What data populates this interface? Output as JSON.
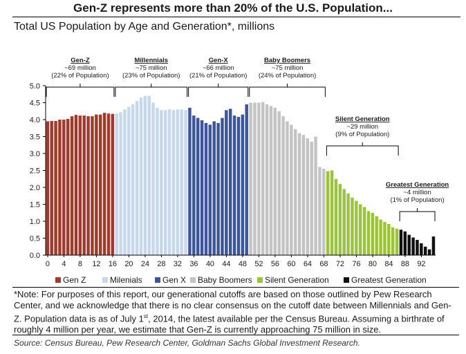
{
  "chart_data": {
    "type": "bar",
    "title": "Gen-Z represents more than 20% of the U.S. Population...",
    "subtitle": "Total US Population by Age and Generation*, millions",
    "xlabel": "",
    "ylabel": "",
    "ylim": [
      0,
      5.0
    ],
    "yticks": [
      "0.0",
      "0.5",
      "1.0",
      "1.5",
      "2.0",
      "2.5",
      "3.0",
      "3.5",
      "4.0",
      "4.5",
      "5.0"
    ],
    "xticks": [
      "0",
      "4",
      "8",
      "12",
      "16",
      "20",
      "24",
      "28",
      "32",
      "36",
      "40",
      "44",
      "48",
      "52",
      "56",
      "60",
      "64",
      "68",
      "72",
      "76",
      "80",
      "84",
      "88",
      "92"
    ],
    "ages": [
      0,
      1,
      2,
      3,
      4,
      5,
      6,
      7,
      8,
      9,
      10,
      11,
      12,
      13,
      14,
      15,
      16,
      17,
      18,
      19,
      20,
      21,
      22,
      23,
      24,
      25,
      26,
      27,
      28,
      29,
      30,
      31,
      32,
      33,
      34,
      35,
      36,
      37,
      38,
      39,
      40,
      41,
      42,
      43,
      44,
      45,
      46,
      47,
      48,
      49,
      50,
      51,
      52,
      53,
      54,
      55,
      56,
      57,
      58,
      59,
      60,
      61,
      62,
      63,
      64,
      65,
      66,
      67,
      68,
      69,
      70,
      71,
      72,
      73,
      74,
      75,
      76,
      77,
      78,
      79,
      80,
      81,
      82,
      83,
      84,
      85,
      86,
      87,
      88,
      89,
      90,
      91,
      92,
      93,
      94,
      95
    ],
    "values": [
      3.95,
      3.96,
      3.96,
      4.0,
      4.0,
      4.02,
      4.1,
      4.14,
      4.12,
      4.12,
      4.1,
      4.1,
      4.15,
      4.15,
      4.2,
      4.18,
      4.17,
      4.18,
      4.22,
      4.3,
      4.38,
      4.45,
      4.55,
      4.65,
      4.7,
      4.7,
      4.5,
      4.35,
      4.28,
      4.28,
      4.3,
      4.28,
      4.3,
      4.3,
      4.28,
      4.35,
      4.12,
      4.05,
      3.98,
      3.9,
      3.85,
      3.95,
      3.9,
      4.05,
      4.28,
      4.32,
      4.12,
      4.08,
      4.15,
      4.45,
      4.5,
      4.5,
      4.5,
      4.52,
      4.45,
      4.4,
      4.35,
      4.25,
      4.1,
      3.95,
      3.85,
      3.72,
      3.6,
      3.55,
      3.45,
      3.35,
      3.5,
      2.6,
      2.55,
      2.48,
      2.5,
      2.25,
      2.1,
      1.95,
      1.82,
      1.7,
      1.6,
      1.5,
      1.42,
      1.3,
      1.25,
      1.15,
      1.05,
      0.98,
      0.92,
      0.82,
      0.78,
      0.75,
      0.7,
      0.6,
      0.52,
      0.45,
      0.35,
      0.25,
      0.17,
      0.55
    ],
    "series": [
      {
        "name": "Gen Z",
        "age_range": [
          0,
          16
        ],
        "color": "#a03a2c"
      },
      {
        "name": "Milenials",
        "age_range": [
          17,
          34
        ],
        "color": "#c6d9ec"
      },
      {
        "name": "Gen X",
        "age_range": [
          35,
          49
        ],
        "color": "#3d559a"
      },
      {
        "name": "Baby Boomers",
        "age_range": [
          50,
          68
        ],
        "color": "#c4c4c4"
      },
      {
        "name": "Silent Generation",
        "age_range": [
          69,
          86
        ],
        "color": "#9cc43a"
      },
      {
        "name": "Greatest Generation",
        "age_range": [
          87,
          95
        ],
        "color": "#111111"
      }
    ],
    "legend_position": "bottom",
    "grid": false,
    "annotations": [
      {
        "title": "Gen-Z",
        "line1": "~69 million",
        "line2": "(22% of Population)",
        "age_range": [
          0,
          16
        ]
      },
      {
        "title": "Millennials",
        "line1": "~75 million",
        "line2": "(23% of Population)",
        "age_range": [
          17,
          34
        ]
      },
      {
        "title": "Gen-X",
        "line1": "~66 million",
        "line2": "(21% of Population)",
        "age_range": [
          35,
          49
        ]
      },
      {
        "title": "Baby Boomers",
        "line1": "~75 million",
        "line2": "(24% of Population)",
        "age_range": [
          50,
          68
        ]
      },
      {
        "title": "Silent Generation",
        "line1": "~29 million",
        "line2": "(9% of Population)",
        "age_range": [
          69,
          86
        ]
      },
      {
        "title": "Greatest Generation",
        "line1": "~4 million",
        "line2": "(1% of Population)",
        "age_range": [
          87,
          95
        ]
      }
    ]
  },
  "note": {
    "part1": "*Note: For purposes of this report, our generational cutoffs are based on those outlined by Pew Research Center, and we acknowledge that there is no clear consensus on the cutoff date between Millennials and Gen-Z. Population data is as of July 1",
    "sup": "st",
    "part2": ", 2014, the latest available per the Census Bureau. Assuming a birthrate of roughly 4 million per year, we estimate that Gen-Z is currently approaching 75 million in size."
  },
  "source": "Source: Census Bureau, Pew Research Center, Goldman Sachs Global Investment Research."
}
